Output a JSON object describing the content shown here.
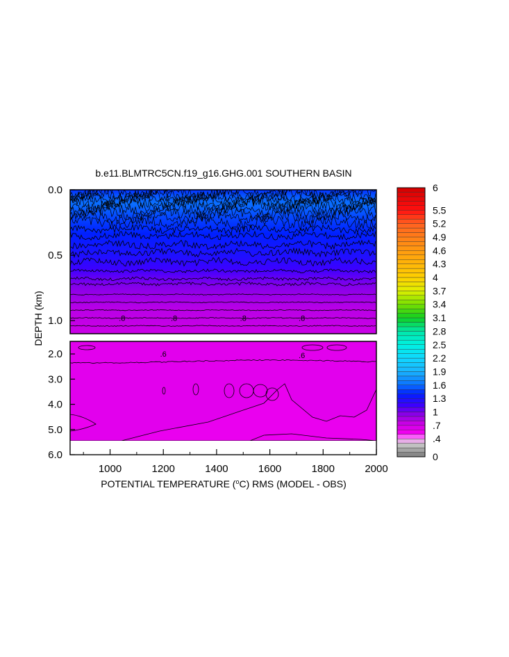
{
  "chart_data": {
    "type": "heatmap",
    "title": "b.e11.BLMTRC5CN.f19_g16.GHG.001 SOUTHERN BASIN",
    "xlabel_prefix": "POTENTIAL TEMPERATURE (",
    "xlabel_sup": "o",
    "xlabel_suffix": "C) RMS (MODEL - OBS)",
    "ylabel": "DEPTH (km)",
    "xlim": [
      850,
      2000
    ],
    "x_ticks": [
      1000,
      1200,
      1400,
      1600,
      1800,
      2000
    ],
    "upper_panel": {
      "ylim": [
        0.0,
        1.1
      ],
      "y_ticks": [
        {
          "value": 0.0,
          "label": "0.0"
        },
        {
          "value": 0.5,
          "label": "0.5"
        },
        {
          "value": 1.0,
          "label": "1.0"
        }
      ],
      "depth_profile": [
        {
          "depth": 0.0,
          "rms": 1.45
        },
        {
          "depth": 0.05,
          "rms": 1.55
        },
        {
          "depth": 0.1,
          "rms": 1.6
        },
        {
          "depth": 0.2,
          "rms": 1.5
        },
        {
          "depth": 0.3,
          "rms": 1.42
        },
        {
          "depth": 0.4,
          "rms": 1.35
        },
        {
          "depth": 0.5,
          "rms": 1.27
        },
        {
          "depth": 0.6,
          "rms": 1.15
        },
        {
          "depth": 0.7,
          "rms": 1.0
        },
        {
          "depth": 0.8,
          "rms": 0.9
        },
        {
          "depth": 0.9,
          "rms": 0.8
        },
        {
          "depth": 1.1,
          "rms": 0.74
        }
      ],
      "contour_labels": [
        {
          "x": 1045,
          "depth": 0.98,
          "text": ".8"
        },
        {
          "x": 1240,
          "depth": 0.98,
          "text": ".8"
        },
        {
          "x": 1500,
          "depth": 0.98,
          "text": ".8"
        },
        {
          "x": 1720,
          "depth": 0.98,
          "text": ".8"
        }
      ]
    },
    "lower_panel": {
      "ylim": [
        1.5,
        6.0
      ],
      "y_ticks": [
        {
          "value": 2.0,
          "label": "2.0"
        },
        {
          "value": 3.0,
          "label": "3.0"
        },
        {
          "value": 4.0,
          "label": "4.0"
        },
        {
          "value": 5.0,
          "label": "5.0"
        },
        {
          "value": 6.0,
          "label": "6.0"
        }
      ],
      "bottom_depth": 5.35,
      "background_rms": 0.62,
      "deep_rms": 0.58,
      "contour_labels": [
        {
          "x": 1200,
          "depth": 2.0,
          "text": ".6"
        },
        {
          "x": 1720,
          "depth": 2.05,
          "text": ".6"
        }
      ]
    },
    "colorbar": {
      "min": 0,
      "max": 6,
      "tick_labels": [
        {
          "value": 6,
          "label": "6"
        },
        {
          "value": 5.5,
          "label": "5.5"
        },
        {
          "value": 5.2,
          "label": "5.2"
        },
        {
          "value": 4.9,
          "label": "4.9"
        },
        {
          "value": 4.6,
          "label": "4.6"
        },
        {
          "value": 4.3,
          "label": "4.3"
        },
        {
          "value": 4,
          "label": "4"
        },
        {
          "value": 3.7,
          "label": "3.7"
        },
        {
          "value": 3.4,
          "label": "3.4"
        },
        {
          "value": 3.1,
          "label": "3.1"
        },
        {
          "value": 2.8,
          "label": "2.8"
        },
        {
          "value": 2.5,
          "label": "2.5"
        },
        {
          "value": 2.2,
          "label": "2.2"
        },
        {
          "value": 1.9,
          "label": "1.9"
        },
        {
          "value": 1.6,
          "label": "1.6"
        },
        {
          "value": 1.3,
          "label": "1.3"
        },
        {
          "value": 1,
          "label": "1"
        },
        {
          "value": 0.7,
          "label": ".7"
        },
        {
          "value": 0.4,
          "label": ".4"
        },
        {
          "value": 0,
          "label": "0"
        }
      ],
      "color_stops": [
        {
          "value": 0.0,
          "color": "#7a7a7a"
        },
        {
          "value": 0.3,
          "color": "#cfcfcf"
        },
        {
          "value": 0.4,
          "color": "#ff8cff"
        },
        {
          "value": 0.55,
          "color": "#f000f0"
        },
        {
          "value": 0.75,
          "color": "#c800e6"
        },
        {
          "value": 0.95,
          "color": "#8a00e8"
        },
        {
          "value": 1.15,
          "color": "#3c00ff"
        },
        {
          "value": 1.4,
          "color": "#0020ff"
        },
        {
          "value": 1.6,
          "color": "#0a70ff"
        },
        {
          "value": 1.9,
          "color": "#1ab4ff"
        },
        {
          "value": 2.2,
          "color": "#10d8ff"
        },
        {
          "value": 2.5,
          "color": "#00f0e0"
        },
        {
          "value": 2.8,
          "color": "#00e8a8"
        },
        {
          "value": 3.1,
          "color": "#10d020"
        },
        {
          "value": 3.4,
          "color": "#78e000"
        },
        {
          "value": 3.7,
          "color": "#e0f000"
        },
        {
          "value": 4.0,
          "color": "#ffd000"
        },
        {
          "value": 4.6,
          "color": "#ff9a10"
        },
        {
          "value": 5.2,
          "color": "#ff6020"
        },
        {
          "value": 5.5,
          "color": "#ff1010"
        },
        {
          "value": 6.0,
          "color": "#d40000"
        }
      ]
    }
  }
}
